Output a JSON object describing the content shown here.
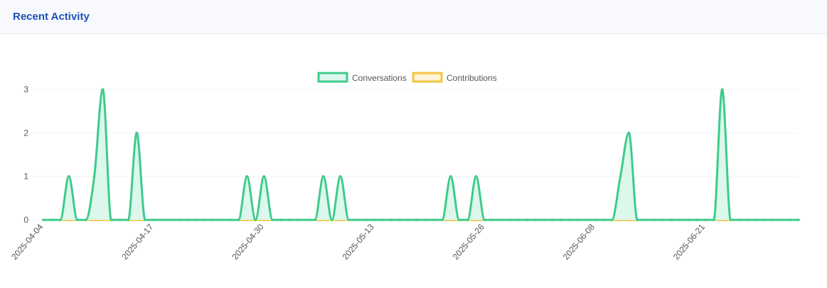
{
  "header": {
    "title": "Recent Activity"
  },
  "chart_data": {
    "type": "line",
    "title": "",
    "xlabel": "",
    "ylabel": "",
    "start_date": "2025-04-04",
    "x_ticks": [
      "2025-04-04",
      "2025-04-17",
      "2025-04-30",
      "2025-05-13",
      "2025-05-26",
      "2025-06-08",
      "2025-06-21"
    ],
    "y_ticks": [
      0,
      1,
      2,
      3
    ],
    "ylim": [
      0,
      3
    ],
    "grid": "horizontal dashed",
    "legend": "top-center",
    "series": [
      {
        "name": "Conversations",
        "color": "#3ecb8a",
        "fill": "#dcf7ec",
        "values": [
          0,
          0,
          0,
          1,
          0,
          0,
          1,
          3,
          0,
          0,
          0,
          2,
          0,
          0,
          0,
          0,
          0,
          0,
          0,
          0,
          0,
          0,
          0,
          0,
          1,
          0,
          1,
          0,
          0,
          0,
          0,
          0,
          0,
          1,
          0,
          1,
          0,
          0,
          0,
          0,
          0,
          0,
          0,
          0,
          0,
          0,
          0,
          0,
          1,
          0,
          0,
          1,
          0,
          0,
          0,
          0,
          0,
          0,
          0,
          0,
          0,
          0,
          0,
          0,
          0,
          0,
          0,
          0,
          1,
          2,
          0,
          0,
          0,
          0,
          0,
          0,
          0,
          0,
          0,
          0,
          3,
          0,
          0,
          0,
          0,
          0,
          0,
          0,
          0,
          0
        ]
      },
      {
        "name": "Contributions",
        "color": "#f3c443",
        "values": [
          0,
          0,
          0,
          0,
          0,
          0,
          0,
          0,
          0,
          0,
          0,
          0,
          0,
          0,
          0,
          0,
          0,
          0,
          0,
          0,
          0,
          0,
          0,
          0,
          0,
          0,
          0,
          0,
          0,
          0,
          0,
          0,
          0,
          0,
          0,
          0,
          0,
          0,
          0,
          0,
          0,
          0,
          0,
          0,
          0,
          0,
          0,
          0,
          0,
          0,
          0,
          0,
          0,
          0,
          0,
          0,
          0,
          0,
          0,
          0,
          0,
          0,
          0,
          0,
          0,
          0,
          0,
          0,
          0,
          0,
          0,
          0,
          0,
          0,
          0,
          0,
          0,
          0,
          0,
          0,
          0,
          0,
          0,
          0,
          0,
          0,
          0,
          0,
          0,
          0
        ]
      }
    ]
  }
}
